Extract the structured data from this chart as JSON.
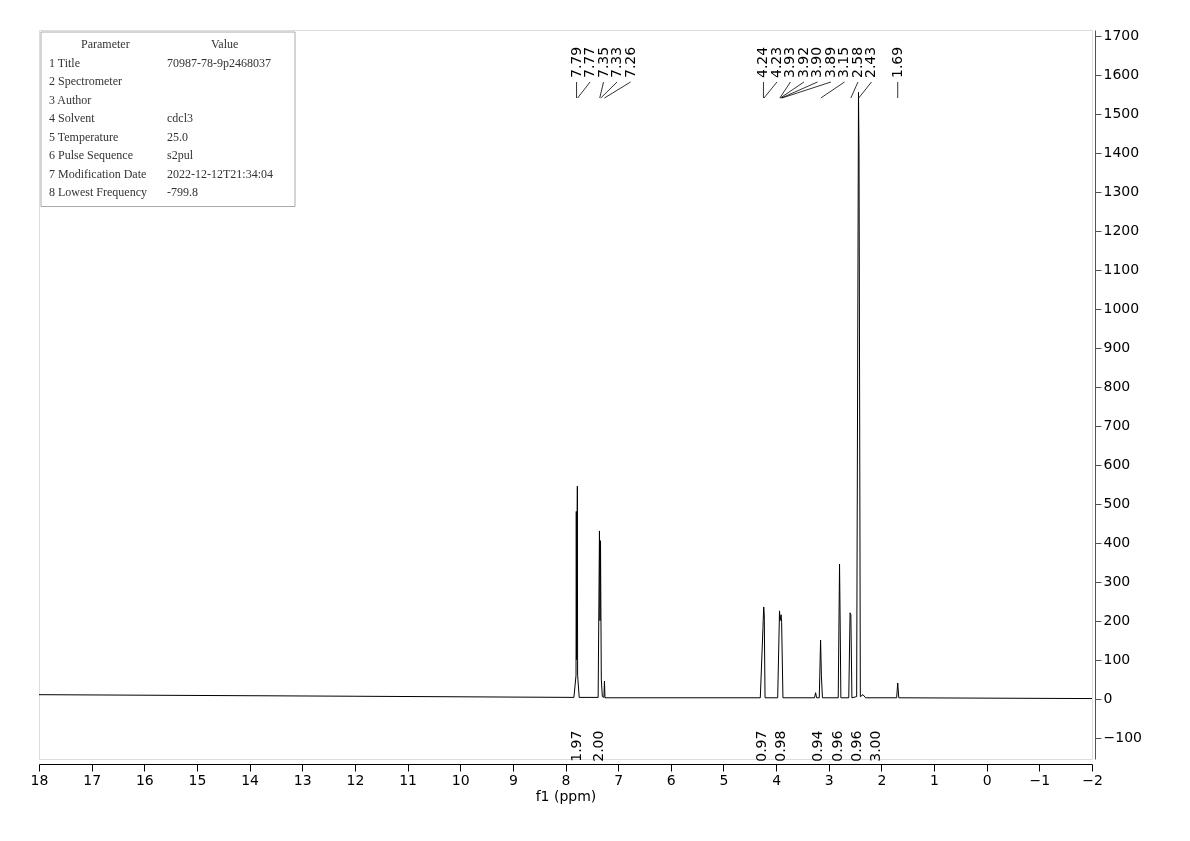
{
  "chart_data": {
    "type": "line",
    "xlabel": "f1 (ppm)",
    "xlim": [
      18,
      -2
    ],
    "xticks": [
      18,
      17,
      16,
      15,
      14,
      13,
      12,
      11,
      10,
      9,
      8,
      7,
      6,
      5,
      4,
      3,
      2,
      1,
      0,
      -1,
      -2
    ],
    "ylim": [
      -155,
      1715
    ],
    "yticks": [
      -100,
      0,
      100,
      200,
      300,
      400,
      500,
      600,
      700,
      800,
      900,
      1000,
      1100,
      1200,
      1300,
      1400,
      1500,
      1600,
      1700
    ],
    "grid": false,
    "marker": "none",
    "line_style": "solid",
    "series": [
      {
        "color": "#000000",
        "x": [
          18,
          12,
          7.84,
          7.8,
          7.795,
          7.79,
          7.775,
          7.77,
          7.74,
          7.38,
          7.355,
          7.345,
          7.335,
          7.32,
          7.3,
          7.27,
          7.26,
          7.25,
          4.3,
          4.25,
          4.245,
          4.235,
          4.225,
          4.21,
          3.97,
          3.935,
          3.925,
          3.905,
          3.895,
          3.87,
          3.27,
          3.25,
          3.23,
          3.18,
          3.155,
          3.14,
          3.12,
          2.82,
          2.795,
          2.785,
          2.77,
          2.62,
          2.595,
          2.58,
          2.56,
          2.47,
          2.435,
          2.425,
          2.4,
          2.35,
          2.3,
          1.71,
          1.69,
          1.67,
          -2
        ],
        "values": [
          10,
          6,
          3,
          60,
          480,
          100,
          545,
          60,
          3,
          3,
          430,
          200,
          405,
          50,
          5,
          3,
          45,
          2,
          2,
          180,
          200,
          235,
          215,
          2,
          2,
          225,
          200,
          215,
          195,
          2,
          2,
          15,
          2,
          2,
          150,
          60,
          2,
          2,
          345,
          220,
          2,
          2,
          220,
          215,
          2,
          5,
          1555,
          1400,
          5,
          10,
          2,
          2,
          40,
          2,
          0
        ]
      }
    ],
    "annotations": [
      {
        "text": "7.79",
        "x": 7.79
      },
      {
        "text": "7.77",
        "x": 7.77
      },
      {
        "text": "7.35",
        "x": 7.35
      },
      {
        "text": "7.33",
        "x": 7.33
      },
      {
        "text": "7.26",
        "x": 7.26
      },
      {
        "text": "4.24",
        "x": 4.24
      },
      {
        "text": "4.23",
        "x": 4.23
      },
      {
        "text": "3.93",
        "x": 3.93
      },
      {
        "text": "3.92",
        "x": 3.92
      },
      {
        "text": "3.90",
        "x": 3.9
      },
      {
        "text": "3.89",
        "x": 3.89
      },
      {
        "text": "3.15",
        "x": 3.15
      },
      {
        "text": "2.58",
        "x": 2.58
      },
      {
        "text": "2.43",
        "x": 2.43
      },
      {
        "text": "1.69",
        "x": 1.69
      },
      "1.97",
      "2.00",
      "0.97",
      "0.98",
      "0.94",
      "0.96",
      "0.96",
      "3.00",
      "Parameter",
      "Value",
      "1 Title",
      "70987-78-9p2468037",
      "2 Spectrometer",
      "3 Author",
      "4 Solvent",
      "cdcl3",
      "5 Temperature",
      "25.0",
      "6 Pulse Sequence",
      "s2pul",
      "7 Modification Date",
      "2022-12-12T21:34:04",
      "8 Lowest Frequency",
      "-799.8"
    ]
  }
}
